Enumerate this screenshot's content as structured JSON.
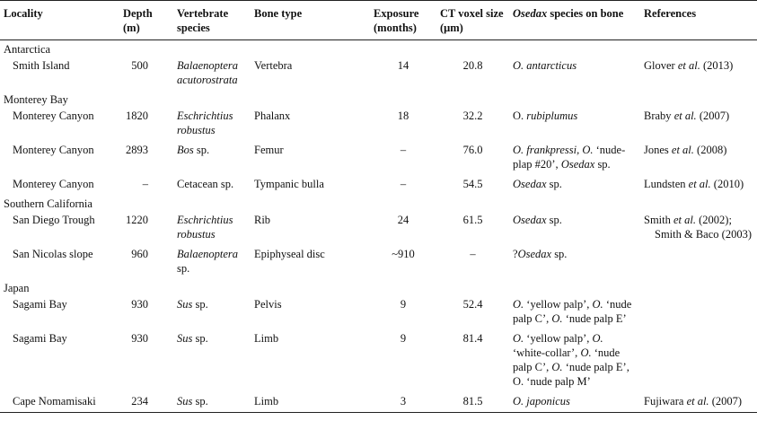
{
  "table": {
    "columns": [
      [
        {
          "text": "Locality"
        }
      ],
      [
        {
          "text": "Depth (m)"
        }
      ],
      [
        {
          "text": "Vertebrate species"
        }
      ],
      [
        {
          "text": "Bone type"
        }
      ],
      [
        {
          "text": "Exposure (months)"
        }
      ],
      [
        {
          "text": "CT voxel size (μm)"
        }
      ],
      [
        {
          "text": "Osedax",
          "italic": true
        },
        {
          "text": " species on bone"
        }
      ],
      [
        {
          "text": "References"
        }
      ]
    ],
    "regions": [
      {
        "name": "Antarctica",
        "rows": [
          [
            [
              {
                "text": "Smith Island"
              }
            ],
            [
              {
                "text": "500"
              }
            ],
            [
              {
                "text": "Balaenoptera acutorostrata",
                "italic": true
              }
            ],
            [
              {
                "text": "Vertebra"
              }
            ],
            [
              {
                "text": "14"
              }
            ],
            [
              {
                "text": "20.8"
              }
            ],
            [
              {
                "text": "O. antarcticus",
                "italic": true
              }
            ],
            [
              {
                "text": "Glover "
              },
              {
                "text": "et al.",
                "italic": true
              },
              {
                "text": " (2013)"
              }
            ]
          ]
        ]
      },
      {
        "name": "Monterey Bay",
        "rows": [
          [
            [
              {
                "text": "Monterey Canyon"
              }
            ],
            [
              {
                "text": "1820"
              }
            ],
            [
              {
                "text": "Eschrichtius robustus",
                "italic": true
              }
            ],
            [
              {
                "text": "Phalanx"
              }
            ],
            [
              {
                "text": "18"
              }
            ],
            [
              {
                "text": "32.2"
              }
            ],
            [
              {
                "text": "O. "
              },
              {
                "text": "rubiplumus",
                "italic": true
              }
            ],
            [
              {
                "text": "Braby "
              },
              {
                "text": "et al.",
                "italic": true
              },
              {
                "text": " (2007)"
              }
            ]
          ],
          [
            [
              {
                "text": "Monterey Canyon"
              }
            ],
            [
              {
                "text": "2893"
              }
            ],
            [
              {
                "text": "Bos",
                "italic": true
              },
              {
                "text": " sp."
              }
            ],
            [
              {
                "text": "Femur"
              }
            ],
            [
              {
                "text": "–"
              }
            ],
            [
              {
                "text": "76.0"
              }
            ],
            [
              {
                "text": "O. frankpressi,",
                "italic": true
              },
              {
                "text": " "
              },
              {
                "text": "O.",
                "italic": true
              },
              {
                "text": " ‘nude-plap #20’, "
              },
              {
                "text": "Osedax",
                "italic": true
              },
              {
                "text": " sp."
              }
            ],
            [
              {
                "text": "Jones "
              },
              {
                "text": "et al.",
                "italic": true
              },
              {
                "text": " (2008)"
              }
            ]
          ],
          [
            [
              {
                "text": "Monterey Canyon"
              }
            ],
            [
              {
                "text": "–"
              }
            ],
            [
              {
                "text": "Cetacean sp."
              }
            ],
            [
              {
                "text": "Tympanic bulla"
              }
            ],
            [
              {
                "text": "–"
              }
            ],
            [
              {
                "text": "54.5"
              }
            ],
            [
              {
                "text": "Osedax",
                "italic": true
              },
              {
                "text": " sp."
              }
            ],
            [
              {
                "text": "Lundsten "
              },
              {
                "text": "et al.",
                "italic": true
              },
              {
                "text": " (2010)"
              }
            ]
          ]
        ]
      },
      {
        "name": "Southern California",
        "rows": [
          [
            [
              {
                "text": "San Diego Trough"
              }
            ],
            [
              {
                "text": "1220"
              }
            ],
            [
              {
                "text": "Eschrichtius robustus",
                "italic": true
              }
            ],
            [
              {
                "text": "Rib"
              }
            ],
            [
              {
                "text": "24"
              }
            ],
            [
              {
                "text": "61.5"
              }
            ],
            [
              {
                "text": "Osedax",
                "italic": true
              },
              {
                "text": " sp."
              }
            ],
            [
              {
                "text": "Smith "
              },
              {
                "text": "et al.",
                "italic": true
              },
              {
                "text": " (2002); Smith & Baco (2003)"
              }
            ]
          ],
          [
            [
              {
                "text": "San Nicolas slope"
              }
            ],
            [
              {
                "text": "960"
              }
            ],
            [
              {
                "text": "Balaenoptera",
                "italic": true
              },
              {
                "text": " sp."
              }
            ],
            [
              {
                "text": "Epiphyseal disc"
              }
            ],
            [
              {
                "text": "~910"
              }
            ],
            [
              {
                "text": "–"
              }
            ],
            [
              {
                "text": "?"
              },
              {
                "text": "Osedax",
                "italic": true
              },
              {
                "text": " sp."
              }
            ],
            []
          ]
        ]
      },
      {
        "name": "Japan",
        "rows": [
          [
            [
              {
                "text": "Sagami Bay"
              }
            ],
            [
              {
                "text": "930"
              }
            ],
            [
              {
                "text": "Sus",
                "italic": true
              },
              {
                "text": " sp."
              }
            ],
            [
              {
                "text": "Pelvis"
              }
            ],
            [
              {
                "text": "9"
              }
            ],
            [
              {
                "text": "52.4"
              }
            ],
            [
              {
                "text": "O.",
                "italic": true
              },
              {
                "text": " ‘yellow palp’, "
              },
              {
                "text": "O.",
                "italic": true
              },
              {
                "text": " ‘nude palp C’, "
              },
              {
                "text": "O.",
                "italic": true
              },
              {
                "text": " ‘nude palp E’"
              }
            ],
            []
          ],
          [
            [
              {
                "text": "Sagami Bay"
              }
            ],
            [
              {
                "text": "930"
              }
            ],
            [
              {
                "text": "Sus",
                "italic": true
              },
              {
                "text": " sp."
              }
            ],
            [
              {
                "text": "Limb"
              }
            ],
            [
              {
                "text": "9"
              }
            ],
            [
              {
                "text": "81.4"
              }
            ],
            [
              {
                "text": "O.",
                "italic": true
              },
              {
                "text": " ‘yellow palp’, "
              },
              {
                "text": "O.",
                "italic": true
              },
              {
                "text": " ‘white-collar’, "
              },
              {
                "text": "O.",
                "italic": true
              },
              {
                "text": " ‘nude palp C’, "
              },
              {
                "text": "O.",
                "italic": true
              },
              {
                "text": " ‘nude palp E’, O. ‘nude palp M’"
              }
            ],
            []
          ],
          [
            [
              {
                "text": "Cape Nomamisaki"
              }
            ],
            [
              {
                "text": "234"
              }
            ],
            [
              {
                "text": "Sus",
                "italic": true
              },
              {
                "text": " sp."
              }
            ],
            [
              {
                "text": "Limb"
              }
            ],
            [
              {
                "text": "3"
              }
            ],
            [
              {
                "text": "81.5"
              }
            ],
            [
              {
                "text": "O. japonicus",
                "italic": true
              }
            ],
            [
              {
                "text": "Fujiwara "
              },
              {
                "text": "et al.",
                "italic": true
              },
              {
                "text": " (2007)"
              }
            ]
          ]
        ]
      }
    ]
  }
}
